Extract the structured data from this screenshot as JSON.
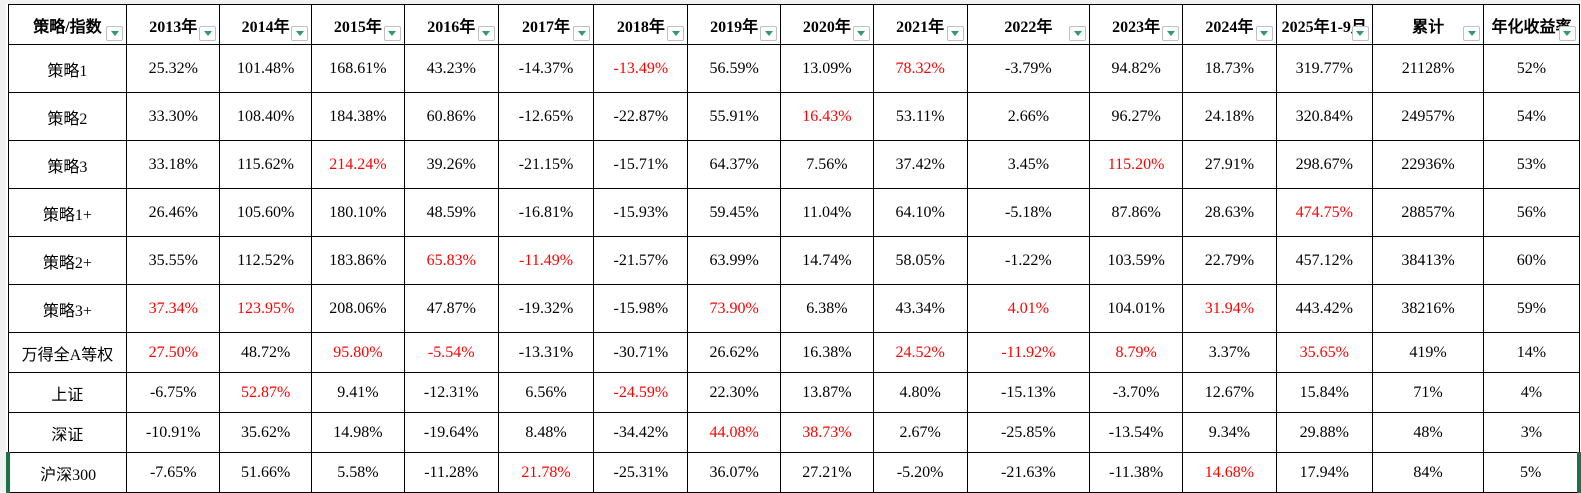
{
  "app": {
    "kind": "spreadsheet-returns-table"
  },
  "colors": {
    "negative_highlight_red": "#ff0000",
    "text_black": "#000000",
    "filter_arrow_green": "#2f9e62",
    "selection_border_green": "#1e7145",
    "grid_border": "#000000"
  },
  "icons": {
    "filter_dropdown": "filter-dropdown-icon (green down triangle in white square button)"
  },
  "table": {
    "columns": [
      "策略/指数",
      "2013年",
      "2014年",
      "2015年",
      "2016年",
      "2017年",
      "2018年",
      "2019年",
      "2020年",
      "2021年",
      "2022年",
      "2023年",
      "2024年",
      "2025年1-9月",
      "累计",
      "年化收益率"
    ],
    "selected_row": "沪深300",
    "rows": [
      {
        "label": "策略1",
        "values": [
          "25.32%",
          "101.48%",
          "168.61%",
          "43.23%",
          "-14.37%",
          "-13.49%",
          "56.59%",
          "13.09%",
          "78.32%",
          "-3.79%",
          "94.82%",
          "18.73%",
          "319.77%",
          "21128%",
          "52%"
        ],
        "red": [
          5,
          8
        ]
      },
      {
        "label": "策略2",
        "values": [
          "33.30%",
          "108.40%",
          "184.38%",
          "60.86%",
          "-12.65%",
          "-22.87%",
          "55.91%",
          "16.43%",
          "53.11%",
          "2.66%",
          "96.27%",
          "24.18%",
          "320.84%",
          "24957%",
          "54%"
        ],
        "red": [
          7
        ]
      },
      {
        "label": "策略3",
        "values": [
          "33.18%",
          "115.62%",
          "214.24%",
          "39.26%",
          "-21.15%",
          "-15.71%",
          "64.37%",
          "7.56%",
          "37.42%",
          "3.45%",
          "115.20%",
          "27.91%",
          "298.67%",
          "22936%",
          "53%"
        ],
        "red": [
          2,
          10
        ]
      },
      {
        "label": "策略1+",
        "values": [
          "26.46%",
          "105.60%",
          "180.10%",
          "48.59%",
          "-16.81%",
          "-15.93%",
          "59.45%",
          "11.04%",
          "64.10%",
          "-5.18%",
          "87.86%",
          "28.63%",
          "474.75%",
          "28857%",
          "56%"
        ],
        "red": [
          12
        ]
      },
      {
        "label": "策略2+",
        "values": [
          "35.55%",
          "112.52%",
          "183.86%",
          "65.83%",
          "-11.49%",
          "-21.57%",
          "63.99%",
          "14.74%",
          "58.05%",
          "-1.22%",
          "103.59%",
          "22.79%",
          "457.12%",
          "38413%",
          "60%"
        ],
        "red": [
          3,
          4
        ]
      },
      {
        "label": "策略3+",
        "values": [
          "37.34%",
          "123.95%",
          "208.06%",
          "47.87%",
          "-19.32%",
          "-15.98%",
          "73.90%",
          "6.38%",
          "43.34%",
          "4.01%",
          "104.01%",
          "31.94%",
          "443.42%",
          "38216%",
          "59%"
        ],
        "red": [
          0,
          1,
          6,
          9,
          11
        ]
      },
      {
        "label": "万得全A等权",
        "values": [
          "27.50%",
          "48.72%",
          "95.80%",
          "-5.54%",
          "-13.31%",
          "-30.71%",
          "26.62%",
          "16.38%",
          "24.52%",
          "-11.92%",
          "8.79%",
          "3.37%",
          "35.65%",
          "419%",
          "14%"
        ],
        "red": [
          0,
          2,
          3,
          8,
          9,
          10,
          12
        ]
      },
      {
        "label": "上证",
        "values": [
          "-6.75%",
          "52.87%",
          "9.41%",
          "-12.31%",
          "6.56%",
          "-24.59%",
          "22.30%",
          "13.87%",
          "4.80%",
          "-15.13%",
          "-3.70%",
          "12.67%",
          "15.84%",
          "71%",
          "4%"
        ],
        "red": [
          1,
          5
        ]
      },
      {
        "label": "深证",
        "values": [
          "-10.91%",
          "35.62%",
          "14.98%",
          "-19.64%",
          "8.48%",
          "-34.42%",
          "44.08%",
          "38.73%",
          "2.67%",
          "-25.85%",
          "-13.54%",
          "9.34%",
          "29.88%",
          "48%",
          "3%"
        ],
        "red": [
          6,
          7
        ]
      },
      {
        "label": "沪深300",
        "values": [
          "-7.65%",
          "51.66%",
          "5.58%",
          "-11.28%",
          "21.78%",
          "-25.31%",
          "36.07%",
          "27.21%",
          "-5.20%",
          "-21.63%",
          "-11.38%",
          "14.68%",
          "17.94%",
          "84%",
          "5%"
        ],
        "red": [
          4,
          11
        ]
      }
    ]
  }
}
